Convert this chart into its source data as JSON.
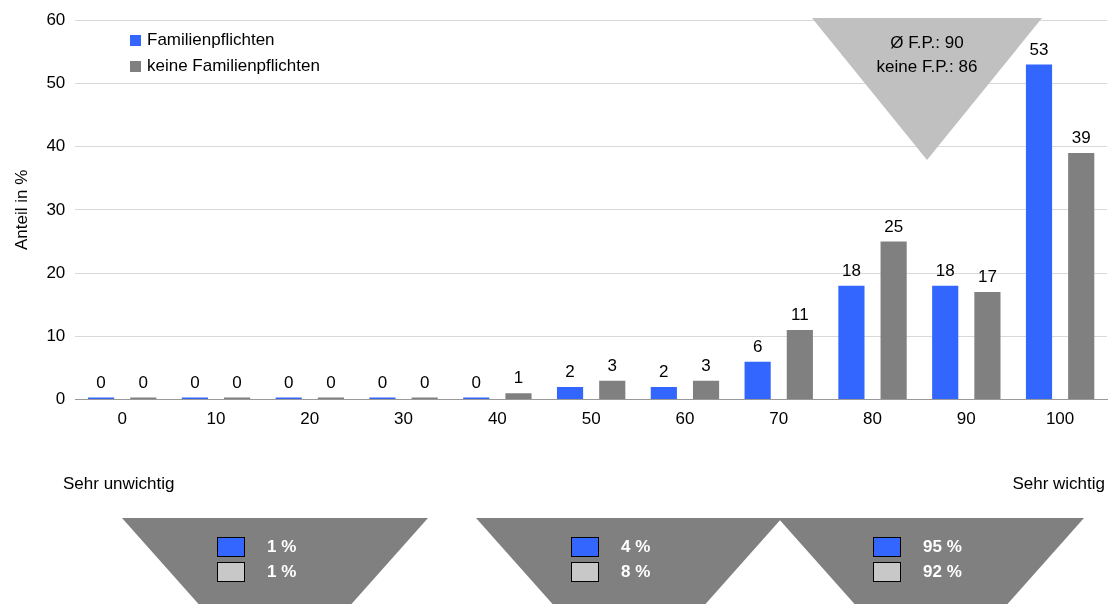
{
  "chart_data": {
    "type": "bar",
    "ylabel": "Anteil in %",
    "categories": [
      "0",
      "10",
      "20",
      "30",
      "40",
      "50",
      "60",
      "70",
      "80",
      "90",
      "100"
    ],
    "series": [
      {
        "name": "Familienpflichten",
        "color": "#3366ff",
        "values": [
          0,
          0,
          0,
          0,
          0,
          2,
          2,
          6,
          18,
          18,
          53
        ]
      },
      {
        "name": "keine Familienpflichten",
        "color": "#808080",
        "values": [
          0,
          0,
          0,
          0,
          1,
          3,
          3,
          11,
          25,
          17,
          39
        ]
      }
    ],
    "ylim": [
      0,
      60
    ],
    "yticks": [
      0,
      10,
      20,
      30,
      40,
      50,
      60
    ],
    "grid": "y",
    "legend": "top left",
    "data_labels": true,
    "annotations": [
      "Ø F.P.: 90",
      "keine F.P.: 86",
      "Sehr unwichtig",
      "Sehr wichtig",
      "1 %",
      "1 %",
      "4 %",
      "8 %",
      "95 %",
      "92 %"
    ]
  }
}
